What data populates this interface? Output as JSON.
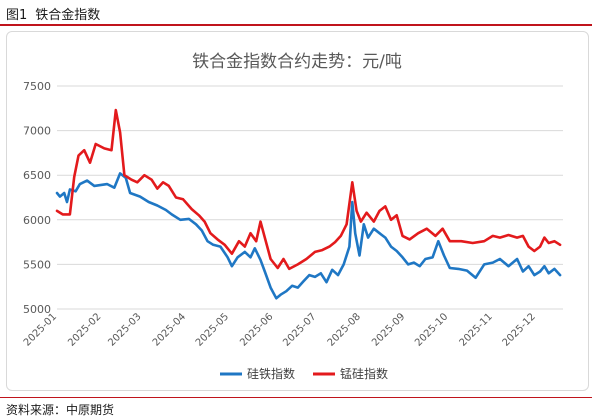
{
  "figure": {
    "number": "图1",
    "caption": "铁合金指数",
    "source": "资料来源：中原期货"
  },
  "chart_data": {
    "type": "line",
    "title": "铁合金指数合约走势：元/吨",
    "xlabel": "",
    "ylabel": "",
    "ylim": [
      5000,
      7500
    ],
    "yticks": [
      5000,
      5500,
      6000,
      6500,
      7000,
      7500
    ],
    "xlim": [
      "2025-01-01",
      "2025-12-20"
    ],
    "xticks": [
      "2025-01",
      "2025-02",
      "2025-03",
      "2025-04",
      "2025-05",
      "2025-06",
      "2025-07",
      "2025-08",
      "2025-09",
      "2025-10",
      "2025-11",
      "2025-12"
    ],
    "grid": "horizontal",
    "legend_position": "bottom-center",
    "series": [
      {
        "name": "硅铁指数",
        "color": "#1f77c4",
        "points": [
          [
            "2025-01-01",
            6300
          ],
          [
            "2025-01-03",
            6260
          ],
          [
            "2025-01-06",
            6300
          ],
          [
            "2025-01-08",
            6200
          ],
          [
            "2025-01-10",
            6340
          ],
          [
            "2025-01-14",
            6320
          ],
          [
            "2025-01-17",
            6400
          ],
          [
            "2025-01-22",
            6440
          ],
          [
            "2025-01-27",
            6380
          ],
          [
            "2025-02-05",
            6400
          ],
          [
            "2025-02-10",
            6360
          ],
          [
            "2025-02-14",
            6520
          ],
          [
            "2025-02-18",
            6470
          ],
          [
            "2025-02-21",
            6300
          ],
          [
            "2025-02-28",
            6260
          ],
          [
            "2025-03-06",
            6200
          ],
          [
            "2025-03-12",
            6160
          ],
          [
            "2025-03-18",
            6110
          ],
          [
            "2025-03-22",
            6060
          ],
          [
            "2025-03-28",
            6000
          ],
          [
            "2025-04-03",
            6010
          ],
          [
            "2025-04-08",
            5950
          ],
          [
            "2025-04-12",
            5880
          ],
          [
            "2025-04-16",
            5760
          ],
          [
            "2025-04-20",
            5720
          ],
          [
            "2025-04-25",
            5700
          ],
          [
            "2025-04-30",
            5580
          ],
          [
            "2025-05-03",
            5480
          ],
          [
            "2025-05-07",
            5580
          ],
          [
            "2025-05-12",
            5640
          ],
          [
            "2025-05-16",
            5580
          ],
          [
            "2025-05-19",
            5680
          ],
          [
            "2025-05-23",
            5550
          ],
          [
            "2025-05-26",
            5420
          ],
          [
            "2025-05-30",
            5240
          ],
          [
            "2025-06-03",
            5120
          ],
          [
            "2025-06-06",
            5160
          ],
          [
            "2025-06-10",
            5200
          ],
          [
            "2025-06-14",
            5260
          ],
          [
            "2025-06-18",
            5240
          ],
          [
            "2025-06-22",
            5310
          ],
          [
            "2025-06-26",
            5380
          ],
          [
            "2025-06-30",
            5360
          ],
          [
            "2025-07-04",
            5400
          ],
          [
            "2025-07-08",
            5300
          ],
          [
            "2025-07-12",
            5440
          ],
          [
            "2025-07-16",
            5380
          ],
          [
            "2025-07-20",
            5500
          ],
          [
            "2025-07-24",
            5700
          ],
          [
            "2025-07-26",
            6200
          ],
          [
            "2025-07-28",
            5850
          ],
          [
            "2025-07-31",
            5600
          ],
          [
            "2025-08-03",
            5950
          ],
          [
            "2025-08-06",
            5800
          ],
          [
            "2025-08-10",
            5900
          ],
          [
            "2025-08-14",
            5850
          ],
          [
            "2025-08-18",
            5800
          ],
          [
            "2025-08-22",
            5700
          ],
          [
            "2025-08-26",
            5650
          ],
          [
            "2025-08-30",
            5580
          ],
          [
            "2025-09-03",
            5500
          ],
          [
            "2025-09-07",
            5520
          ],
          [
            "2025-09-11",
            5480
          ],
          [
            "2025-09-15",
            5560
          ],
          [
            "2025-09-20",
            5580
          ],
          [
            "2025-09-24",
            5760
          ],
          [
            "2025-09-28",
            5600
          ],
          [
            "2025-10-02",
            5460
          ],
          [
            "2025-10-08",
            5450
          ],
          [
            "2025-10-14",
            5430
          ],
          [
            "2025-10-20",
            5350
          ],
          [
            "2025-10-26",
            5500
          ],
          [
            "2025-11-01",
            5520
          ],
          [
            "2025-11-06",
            5560
          ],
          [
            "2025-11-12",
            5480
          ],
          [
            "2025-11-18",
            5560
          ],
          [
            "2025-11-22",
            5420
          ],
          [
            "2025-11-26",
            5480
          ],
          [
            "2025-11-30",
            5380
          ],
          [
            "2025-12-04",
            5420
          ],
          [
            "2025-12-07",
            5480
          ],
          [
            "2025-12-10",
            5400
          ],
          [
            "2025-12-14",
            5450
          ],
          [
            "2025-12-18",
            5380
          ]
        ]
      },
      {
        "name": "锰硅指数",
        "color": "#e31a1c",
        "points": [
          [
            "2025-01-01",
            6100
          ],
          [
            "2025-01-05",
            6060
          ],
          [
            "2025-01-10",
            6060
          ],
          [
            "2025-01-13",
            6480
          ],
          [
            "2025-01-16",
            6720
          ],
          [
            "2025-01-20",
            6780
          ],
          [
            "2025-01-24",
            6640
          ],
          [
            "2025-01-28",
            6850
          ],
          [
            "2025-02-03",
            6800
          ],
          [
            "2025-02-08",
            6780
          ],
          [
            "2025-02-11",
            7230
          ],
          [
            "2025-02-14",
            6980
          ],
          [
            "2025-02-17",
            6500
          ],
          [
            "2025-02-22",
            6450
          ],
          [
            "2025-02-26",
            6420
          ],
          [
            "2025-03-03",
            6500
          ],
          [
            "2025-03-08",
            6450
          ],
          [
            "2025-03-12",
            6350
          ],
          [
            "2025-03-16",
            6420
          ],
          [
            "2025-03-20",
            6380
          ],
          [
            "2025-03-25",
            6250
          ],
          [
            "2025-03-30",
            6230
          ],
          [
            "2025-04-05",
            6120
          ],
          [
            "2025-04-10",
            6050
          ],
          [
            "2025-04-14",
            5980
          ],
          [
            "2025-04-18",
            5850
          ],
          [
            "2025-04-23",
            5780
          ],
          [
            "2025-04-28",
            5720
          ],
          [
            "2025-05-03",
            5620
          ],
          [
            "2025-05-08",
            5760
          ],
          [
            "2025-05-12",
            5700
          ],
          [
            "2025-05-16",
            5850
          ],
          [
            "2025-05-20",
            5760
          ],
          [
            "2025-05-23",
            5980
          ],
          [
            "2025-05-26",
            5800
          ],
          [
            "2025-05-30",
            5560
          ],
          [
            "2025-06-04",
            5460
          ],
          [
            "2025-06-08",
            5560
          ],
          [
            "2025-06-12",
            5450
          ],
          [
            "2025-06-18",
            5500
          ],
          [
            "2025-06-24",
            5560
          ],
          [
            "2025-06-30",
            5640
          ],
          [
            "2025-07-05",
            5660
          ],
          [
            "2025-07-10",
            5700
          ],
          [
            "2025-07-14",
            5750
          ],
          [
            "2025-07-18",
            5820
          ],
          [
            "2025-07-22",
            5950
          ],
          [
            "2025-07-26",
            6420
          ],
          [
            "2025-07-29",
            6100
          ],
          [
            "2025-08-01",
            5980
          ],
          [
            "2025-08-05",
            6080
          ],
          [
            "2025-08-10",
            5980
          ],
          [
            "2025-08-14",
            6100
          ],
          [
            "2025-08-18",
            6150
          ],
          [
            "2025-08-22",
            6000
          ],
          [
            "2025-08-26",
            6050
          ],
          [
            "2025-08-30",
            5820
          ],
          [
            "2025-09-04",
            5780
          ],
          [
            "2025-09-10",
            5850
          ],
          [
            "2025-09-16",
            5900
          ],
          [
            "2025-09-22",
            5820
          ],
          [
            "2025-09-27",
            5900
          ],
          [
            "2025-10-02",
            5760
          ],
          [
            "2025-10-10",
            5760
          ],
          [
            "2025-10-18",
            5740
          ],
          [
            "2025-10-26",
            5760
          ],
          [
            "2025-11-01",
            5820
          ],
          [
            "2025-11-06",
            5800
          ],
          [
            "2025-11-12",
            5830
          ],
          [
            "2025-11-18",
            5800
          ],
          [
            "2025-11-22",
            5820
          ],
          [
            "2025-11-26",
            5700
          ],
          [
            "2025-11-30",
            5650
          ],
          [
            "2025-12-04",
            5700
          ],
          [
            "2025-12-07",
            5800
          ],
          [
            "2025-12-10",
            5740
          ],
          [
            "2025-12-14",
            5760
          ],
          [
            "2025-12-18",
            5720
          ]
        ]
      }
    ]
  }
}
